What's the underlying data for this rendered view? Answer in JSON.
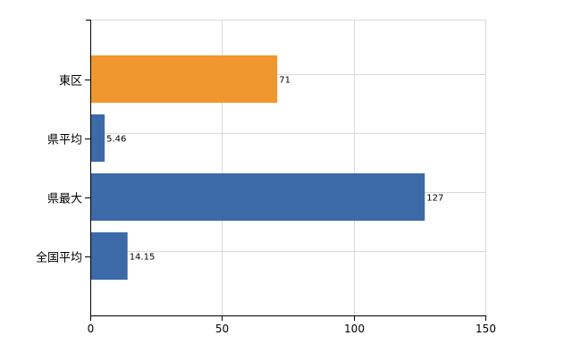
{
  "chart_data": {
    "type": "bar",
    "orientation": "horizontal",
    "categories": [
      "東区",
      "県平均",
      "県最大",
      "全国平均"
    ],
    "values": [
      71,
      5.46,
      127,
      14.15
    ],
    "value_labels": [
      "71",
      "5.46",
      "127",
      "14.15"
    ],
    "bar_colors": [
      "#f0962f",
      "#3c6aa8",
      "#3c6aa8",
      "#3c6aa8"
    ],
    "xlim": [
      0,
      150
    ],
    "x_ticks": [
      0,
      50,
      100,
      150
    ],
    "grid": true,
    "title": "",
    "xlabel": "",
    "ylabel": ""
  }
}
